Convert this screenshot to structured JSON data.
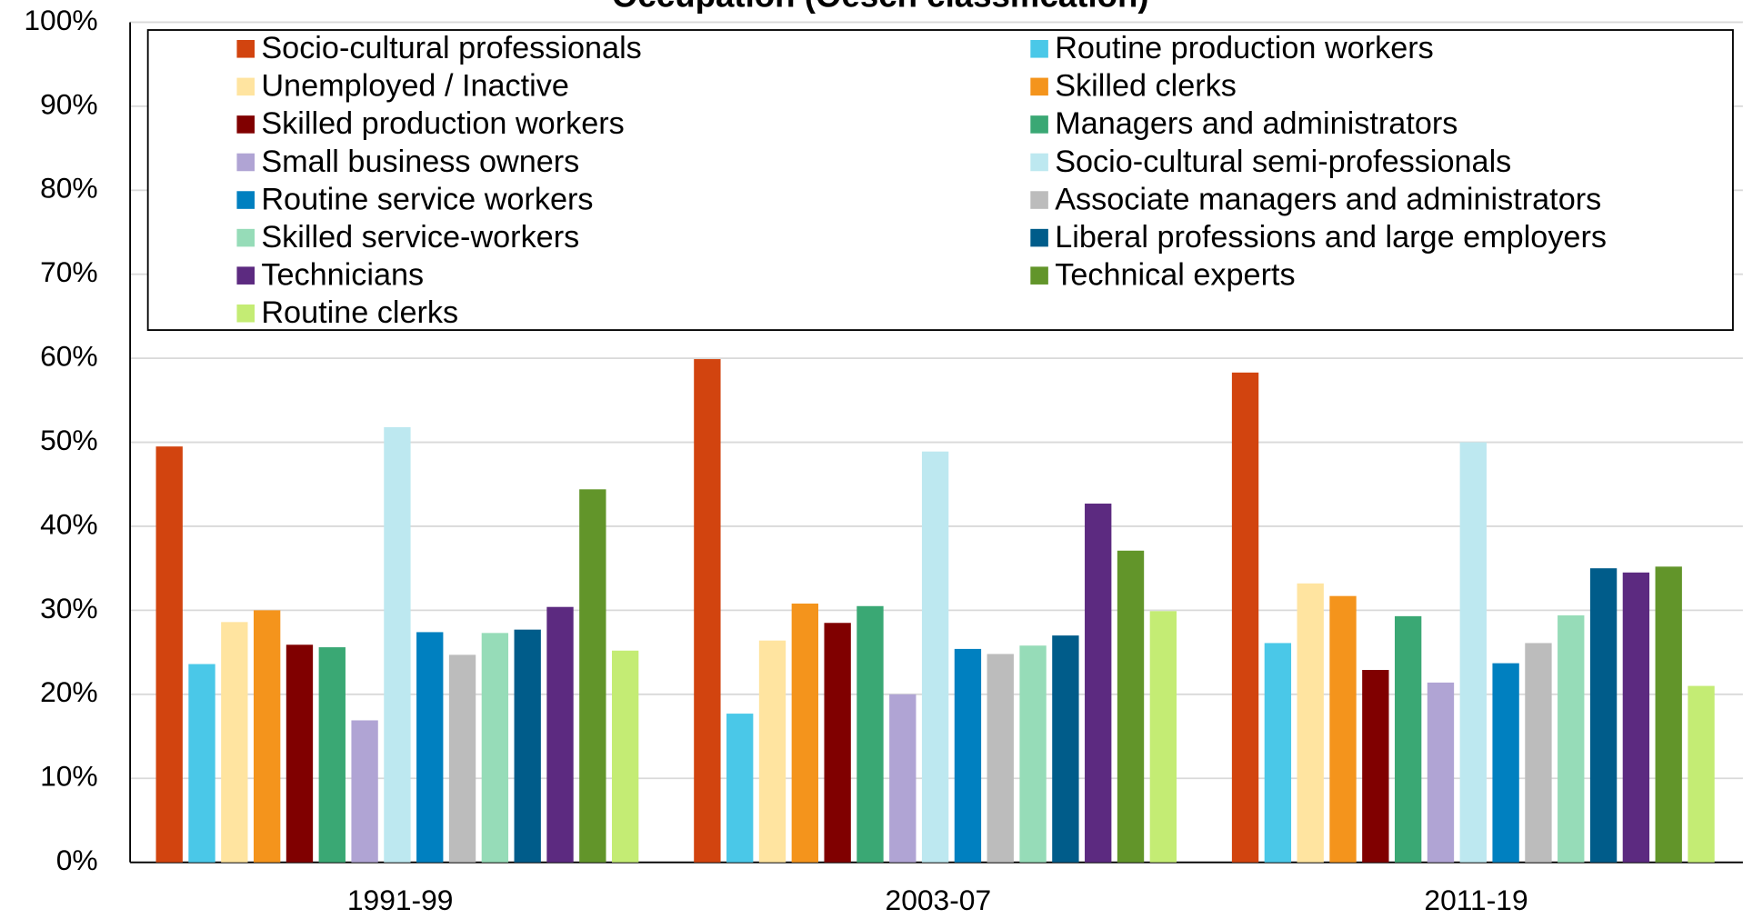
{
  "chart_data": {
    "type": "bar",
    "title": "Occupation (Oesch classification)",
    "categories": [
      "1991-99",
      "2003-07",
      "2011-19"
    ],
    "series": [
      {
        "name": "Socio-cultural professionals",
        "color": "#d2440f",
        "values": [
          49.5,
          59.9,
          58.3
        ]
      },
      {
        "name": "Routine production workers",
        "color": "#4ac8e8",
        "values": [
          23.6,
          17.7,
          26.1
        ]
      },
      {
        "name": "Unemployed / Inactive",
        "color": "#ffe4a0",
        "values": [
          28.6,
          26.4,
          33.2
        ]
      },
      {
        "name": "Skilled clerks",
        "color": "#f4941c",
        "values": [
          30.0,
          30.8,
          31.7
        ]
      },
      {
        "name": "Skilled production workers",
        "color": "#800000",
        "values": [
          25.9,
          28.5,
          22.9
        ]
      },
      {
        "name": "Managers and administrators",
        "color": "#3aa874",
        "values": [
          25.6,
          30.5,
          29.3
        ]
      },
      {
        "name": "Small business owners",
        "color": "#b0a4d4",
        "values": [
          16.9,
          20.0,
          21.4
        ]
      },
      {
        "name": "Socio-cultural semi-professionals",
        "color": "#bde8f0",
        "values": [
          51.8,
          48.9,
          50.0
        ]
      },
      {
        "name": "Routine service workers",
        "color": "#0080c0",
        "values": [
          27.4,
          25.4,
          23.7
        ]
      },
      {
        "name": "Associate managers and administrators",
        "color": "#bcbcbc",
        "values": [
          24.7,
          24.8,
          26.1
        ]
      },
      {
        "name": "Skilled service-workers",
        "color": "#96dcb8",
        "values": [
          27.3,
          25.8,
          29.4
        ]
      },
      {
        "name": "Liberal professions and large employers",
        "color": "#005c8a",
        "values": [
          27.7,
          27.0,
          35.0
        ]
      },
      {
        "name": "Technicians",
        "color": "#5c2a80",
        "values": [
          30.4,
          42.7,
          34.5
        ]
      },
      {
        "name": "Technical experts",
        "color": "#62952a",
        "values": [
          44.4,
          37.1,
          35.2
        ]
      },
      {
        "name": "Routine clerks",
        "color": "#c4ec74",
        "values": [
          25.2,
          29.9,
          21.0
        ]
      }
    ],
    "ylim": [
      0,
      100
    ],
    "yticks": [
      {
        "value": 0,
        "label": "0%"
      },
      {
        "value": 10,
        "label": "10%"
      },
      {
        "value": 20,
        "label": "20%"
      },
      {
        "value": 30,
        "label": "30%"
      },
      {
        "value": 40,
        "label": "40%"
      },
      {
        "value": 50,
        "label": "50%"
      },
      {
        "value": 60,
        "label": "60%"
      },
      {
        "value": 70,
        "label": "70%"
      },
      {
        "value": 80,
        "label": "80%"
      },
      {
        "value": 90,
        "label": "90%"
      },
      {
        "value": 100,
        "label": "100%"
      }
    ],
    "grid": true,
    "legend": "top"
  }
}
